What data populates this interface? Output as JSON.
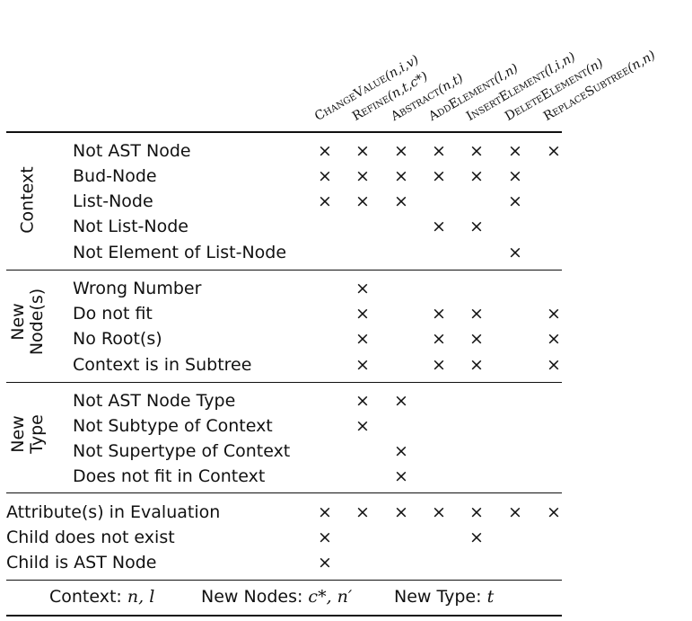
{
  "columns": [
    {
      "name": "ChangeValue",
      "args": "(n,i,v)"
    },
    {
      "name": "Refine",
      "args": "(n,t,c*)"
    },
    {
      "name": "Abstract",
      "args": "(n,t)"
    },
    {
      "name": "AddElement",
      "args": "(l,n)"
    },
    {
      "name": "InsertElement",
      "args": "(l,i,n)"
    },
    {
      "name": "DeleteElement",
      "args": "(n)"
    },
    {
      "name": "ReplaceSubtree",
      "args": "(n,n)"
    }
  ],
  "mark_symbol": "×",
  "groups": [
    {
      "label_lines": [
        "Context"
      ],
      "rows": [
        {
          "label": "Not AST Node",
          "marks": [
            1,
            1,
            1,
            1,
            1,
            1,
            1
          ]
        },
        {
          "label": "Bud-Node",
          "marks": [
            1,
            1,
            1,
            1,
            1,
            1,
            0
          ]
        },
        {
          "label": "List-Node",
          "marks": [
            1,
            1,
            1,
            0,
            0,
            1,
            0
          ]
        },
        {
          "label": "Not List-Node",
          "marks": [
            0,
            0,
            0,
            1,
            1,
            0,
            0
          ]
        },
        {
          "label": "Not Element of List-Node",
          "marks": [
            0,
            0,
            0,
            0,
            0,
            1,
            0
          ]
        }
      ]
    },
    {
      "label_lines": [
        "New",
        "Node(s)"
      ],
      "rows": [
        {
          "label": "Wrong Number",
          "marks": [
            0,
            1,
            0,
            0,
            0,
            0,
            0
          ]
        },
        {
          "label": "Do not fit",
          "marks": [
            0,
            1,
            0,
            1,
            1,
            0,
            1
          ]
        },
        {
          "label": "No Root(s)",
          "marks": [
            0,
            1,
            0,
            1,
            1,
            0,
            1
          ]
        },
        {
          "label": "Context is in Subtree",
          "marks": [
            0,
            1,
            0,
            1,
            1,
            0,
            1
          ]
        }
      ]
    },
    {
      "label_lines": [
        "New",
        "Type"
      ],
      "rows": [
        {
          "label": "Not AST Node Type",
          "marks": [
            0,
            1,
            1,
            0,
            0,
            0,
            0
          ]
        },
        {
          "label": "Not Subtype of Context",
          "marks": [
            0,
            1,
            0,
            0,
            0,
            0,
            0
          ]
        },
        {
          "label": "Not Supertype of Context",
          "marks": [
            0,
            0,
            1,
            0,
            0,
            0,
            0
          ]
        },
        {
          "label": "Does not fit in Context",
          "marks": [
            0,
            0,
            1,
            0,
            0,
            0,
            0
          ]
        }
      ]
    }
  ],
  "general_rows": [
    {
      "label": "Attribute(s) in Evaluation",
      "marks": [
        1,
        1,
        1,
        1,
        1,
        1,
        1
      ]
    },
    {
      "label": "Child does not exist",
      "marks": [
        1,
        0,
        0,
        0,
        1,
        0,
        0
      ]
    },
    {
      "label": "Child is AST Node",
      "marks": [
        1,
        0,
        0,
        0,
        0,
        0,
        0
      ]
    }
  ],
  "footer": {
    "context_label": "Context:",
    "context_vars": "n, l",
    "new_nodes_label": "New Nodes:",
    "new_nodes_vars": "c*, n′",
    "new_type_label": "New Type:",
    "new_type_vars": "t"
  }
}
